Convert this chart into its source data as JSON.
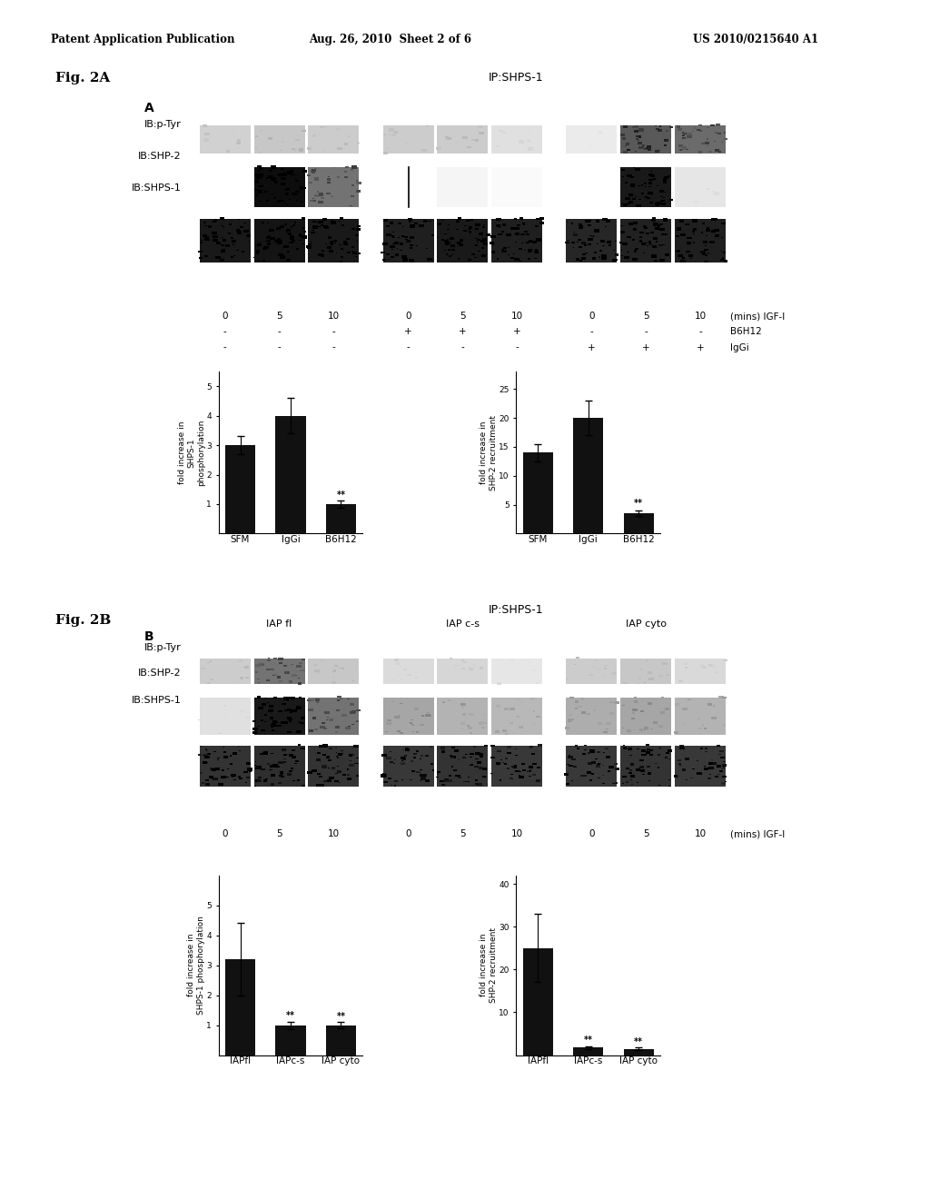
{
  "header_left": "Patent Application Publication",
  "header_mid": "Aug. 26, 2010  Sheet 2 of 6",
  "header_right": "US 2010/0215640 A1",
  "fig2a_label": "Fig. 2A",
  "fig2b_label": "Fig. 2B",
  "panel_a_label": "A",
  "panel_b_label": "B",
  "ip_label_a": "IP:SHPS-1",
  "ip_label_b": "IP:SHPS-1",
  "ib_labels_a": [
    "IB:p-Tyr",
    "IB:SHP-2",
    "IB:SHPS-1"
  ],
  "ib_labels_b": [
    "IB:p-Tyr",
    "IB:SHP-2",
    "IB:SHPS-1"
  ],
  "time_labels": [
    "0",
    "5",
    "10",
    "0",
    "5",
    "10",
    "0",
    "5",
    "10"
  ],
  "time_suffix": "(mins) IGF-I",
  "b6h12_row_a": [
    "-",
    "-",
    "-",
    "+",
    "+",
    "+",
    "-",
    "-",
    "-"
  ],
  "iggi_row_a": [
    "-",
    "-",
    "-",
    "-",
    "-",
    "-",
    "+",
    "+",
    "+"
  ],
  "b6h12_label": "B6H12",
  "iggi_label": "IgGi",
  "iap_labels_b": [
    "IAP fl",
    "IAP c-s",
    "IAP cyto"
  ],
  "bar_chart_a1_categories": [
    "SFM",
    "IgGi",
    "B6H12"
  ],
  "bar_chart_a1_values": [
    3.0,
    4.0,
    1.0
  ],
  "bar_chart_a1_errors": [
    0.3,
    0.6,
    0.12
  ],
  "bar_chart_a1_ylabel": "fold increase in\nSHPS-1\nphosphorylation",
  "bar_chart_a1_yticks": [
    1,
    2,
    3,
    4,
    5
  ],
  "bar_chart_a1_ylim": [
    0,
    5.5
  ],
  "bar_chart_a2_categories": [
    "SFM",
    "IgGi",
    "B6H12"
  ],
  "bar_chart_a2_values": [
    14.0,
    20.0,
    3.5
  ],
  "bar_chart_a2_errors": [
    1.5,
    3.0,
    0.5
  ],
  "bar_chart_a2_ylabel": "fold increase in\nSHP-2 recruitment",
  "bar_chart_a2_yticks": [
    5,
    10,
    15,
    20,
    25
  ],
  "bar_chart_a2_ylim": [
    0,
    28
  ],
  "bar_chart_b1_categories": [
    "IAPfl",
    "IAPc-s",
    "IAP cyto"
  ],
  "bar_chart_b1_values": [
    3.2,
    1.0,
    1.0
  ],
  "bar_chart_b1_errors": [
    1.2,
    0.12,
    0.1
  ],
  "bar_chart_b1_ylabel": "fold increase in\nSHPS-1 phosphorylation",
  "bar_chart_b1_yticks": [
    1,
    2,
    3,
    4,
    5
  ],
  "bar_chart_b1_ylim": [
    0,
    6
  ],
  "bar_chart_b2_categories": [
    "IAPfl",
    "IAPc-s",
    "IAP cyto"
  ],
  "bar_chart_b2_values": [
    25.0,
    1.8,
    1.5
  ],
  "bar_chart_b2_errors": [
    8.0,
    0.3,
    0.25
  ],
  "bar_chart_b2_ylabel": "fold increase in\nSHP-2 recruitment",
  "bar_chart_b2_yticks": [
    10,
    20,
    30,
    40
  ],
  "bar_chart_b2_ylim": [
    0,
    42
  ],
  "bar_color": "#111111",
  "sig_label": "**",
  "background_color": "#ffffff",
  "text_color": "#000000",
  "header_fontsize": 8.5,
  "fig_label_fontsize": 11,
  "panel_label_fontsize": 10,
  "ib_label_fontsize": 8,
  "tick_label_fontsize": 7.5,
  "bar_ylabel_fontsize": 6.5,
  "bar_xlabel_fontsize": 7.5
}
